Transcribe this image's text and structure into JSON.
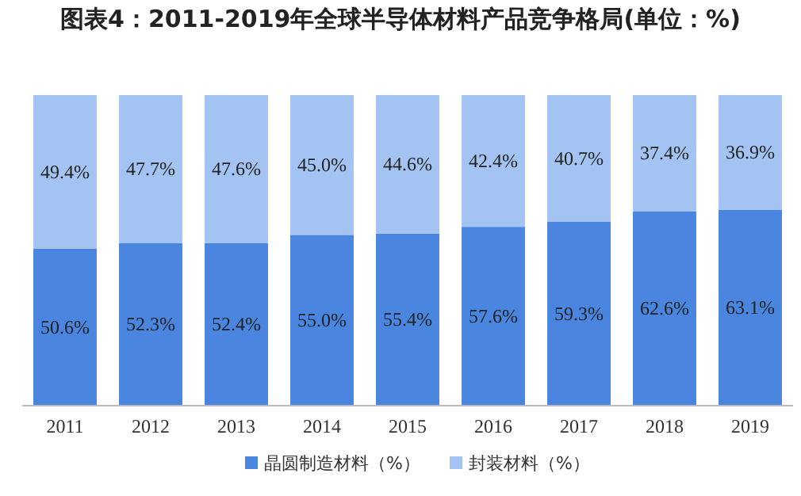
{
  "chart_data": {
    "type": "bar",
    "title": "图表4：2011-2019年全球半导体材料产品竞争格局(单位：%)",
    "stacked": true,
    "legend": "bottom",
    "grid": false,
    "categories": [
      "2011",
      "2012",
      "2013",
      "2014",
      "2015",
      "2016",
      "2017",
      "2018",
      "2019"
    ],
    "series": [
      {
        "name": "晶圆制造材料（%）",
        "color": "#4a86e0",
        "values": [
          50.6,
          52.3,
          52.4,
          55.0,
          55.4,
          57.6,
          59.3,
          62.6,
          63.1
        ],
        "value_labels": [
          "50.6%",
          "52.3%",
          "52.4%",
          "55.0%",
          "55.4%",
          "57.6%",
          "59.3%",
          "62.6%",
          "63.1%"
        ]
      },
      {
        "name": "封装材料（%）",
        "color": "#a3c4f3",
        "values": [
          49.4,
          47.7,
          47.6,
          45.0,
          44.6,
          42.4,
          40.7,
          37.4,
          36.9
        ],
        "value_labels": [
          "49.4%",
          "47.7%",
          "47.6%",
          "45.0%",
          "44.6%",
          "42.4%",
          "40.7%",
          "37.4%",
          "36.9%"
        ]
      }
    ]
  }
}
